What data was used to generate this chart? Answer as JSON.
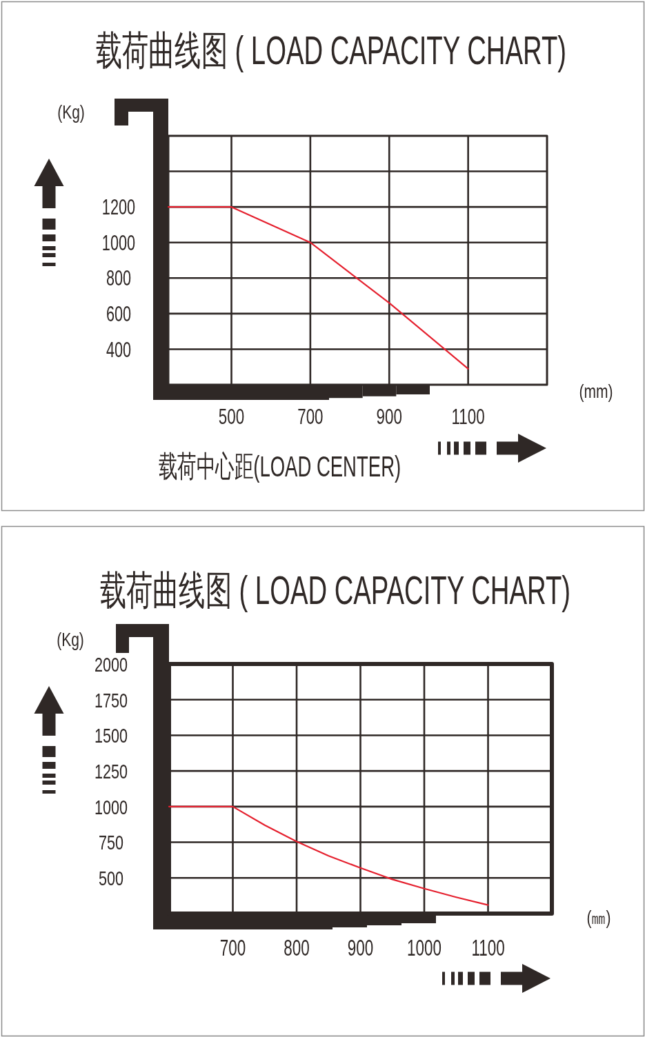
{
  "chart_data": [
    {
      "type": "line",
      "title": "载荷曲线图 ( LOAD CAPACITY CHART)",
      "xlabel": "(mm)",
      "ylabel": "(Kg)",
      "annotations": [
        "载荷中心距(LOAD CENTER)"
      ],
      "x": [
        340,
        500,
        700,
        900,
        1100
      ],
      "series": [
        {
          "color": "#e5202e",
          "values": [
            1200,
            1200,
            1000,
            660,
            290
          ]
        }
      ],
      "xlim": [
        340,
        1300
      ],
      "ylim": [
        200,
        1600
      ],
      "xticks": [
        500,
        700,
        900,
        1100
      ],
      "yticks": [
        400,
        600,
        800,
        1000,
        1200,
        {
          "value": 1400,
          "label": null
        }
      ],
      "grid": true
    },
    {
      "type": "line",
      "title": "载荷曲线图 ( LOAD CAPACITY CHART)",
      "xlabel": "(㎜)",
      "ylabel": "(Kg)",
      "x": [
        600,
        700,
        750,
        800,
        850,
        900,
        950,
        1000,
        1050,
        1100
      ],
      "series": [
        {
          "color": "#e5202e",
          "values": [
            1000,
            1000,
            870,
            755,
            655,
            570,
            490,
            425,
            365,
            310
          ]
        }
      ],
      "xlim": [
        600,
        1200
      ],
      "ylim": [
        250,
        2000
      ],
      "xticks": [
        700,
        800,
        900,
        1000,
        1100
      ],
      "yticks": [
        500,
        750,
        1000,
        1250,
        1500,
        1750,
        2000
      ],
      "grid": true
    }
  ]
}
